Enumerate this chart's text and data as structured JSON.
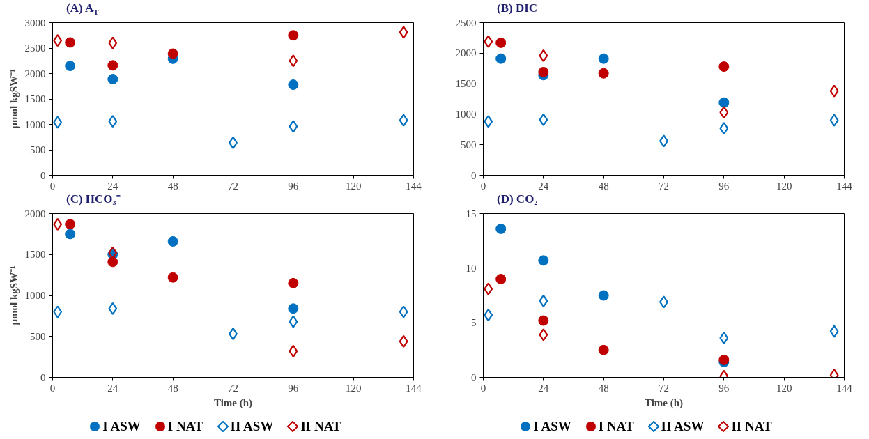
{
  "chart_data": [
    {
      "type": "scatter",
      "title": "(A) A$_{T}$",
      "ylabel": "µmol kgSW⁻¹",
      "xlim": [
        0,
        144
      ],
      "xticks": [
        0,
        24,
        48,
        72,
        96,
        120,
        144
      ],
      "ylim": [
        0,
        3000
      ],
      "yticks": [
        0,
        500,
        1000,
        1500,
        2000,
        2500,
        3000
      ],
      "grid": false,
      "series": [
        {
          "color": "#0070c0",
          "marker": "circle",
          "x": [
            7,
            24,
            48,
            96
          ],
          "values": [
            2150,
            1890,
            2290,
            1780
          ]
        },
        {
          "color": "#c00000",
          "marker": "circle",
          "x": [
            7,
            24,
            48,
            96
          ],
          "values": [
            2610,
            2160,
            2390,
            2750
          ]
        },
        {
          "color": "#0070c0",
          "marker": "diamond",
          "x": [
            2,
            24,
            72,
            96,
            140
          ],
          "values": [
            1040,
            1060,
            640,
            960,
            1080
          ]
        },
        {
          "color": "#c00000",
          "marker": "diamond",
          "x": [
            2,
            24,
            96,
            140
          ],
          "values": [
            2650,
            2600,
            2250,
            2810
          ]
        }
      ]
    },
    {
      "type": "scatter",
      "title": "(B) DIC",
      "xlim": [
        0,
        144
      ],
      "xticks": [
        0,
        24,
        48,
        72,
        96,
        120,
        144
      ],
      "ylim": [
        0,
        2500
      ],
      "yticks": [
        0,
        500,
        1000,
        1500,
        2000,
        2500
      ],
      "grid": false,
      "series": [
        {
          "color": "#0070c0",
          "marker": "circle",
          "x": [
            7,
            24,
            48,
            96
          ],
          "values": [
            1910,
            1640,
            1910,
            1190
          ]
        },
        {
          "color": "#c00000",
          "marker": "circle",
          "x": [
            7,
            24,
            48,
            96
          ],
          "values": [
            2170,
            1690,
            1670,
            1780
          ]
        },
        {
          "color": "#0070c0",
          "marker": "diamond",
          "x": [
            2,
            24,
            72,
            96,
            140
          ],
          "values": [
            880,
            910,
            560,
            770,
            900
          ]
        },
        {
          "color": "#c00000",
          "marker": "diamond",
          "x": [
            2,
            24,
            96,
            140
          ],
          "values": [
            2190,
            1960,
            1030,
            1380
          ]
        }
      ]
    },
    {
      "type": "scatter",
      "title": "(C) HCO₃⁻",
      "xlabel": "Time (h)",
      "ylabel": "µmol kgSW⁻¹",
      "xlim": [
        0,
        144
      ],
      "xticks": [
        0,
        24,
        48,
        72,
        96,
        120,
        144
      ],
      "ylim": [
        0,
        2000
      ],
      "yticks": [
        0,
        500,
        1000,
        1500,
        2000
      ],
      "grid": false,
      "legend": "bottom",
      "series": [
        {
          "name": "I ASW",
          "color": "#0070c0",
          "marker": "circle",
          "x": [
            7,
            24,
            48,
            96
          ],
          "values": [
            1750,
            1500,
            1660,
            840
          ]
        },
        {
          "name": "I NAT",
          "color": "#c00000",
          "marker": "circle",
          "x": [
            7,
            24,
            48,
            96
          ],
          "values": [
            1870,
            1410,
            1220,
            1150
          ]
        },
        {
          "name": "II ASW",
          "color": "#0070c0",
          "marker": "diamond",
          "x": [
            2,
            24,
            72,
            96,
            140
          ],
          "values": [
            800,
            840,
            530,
            680,
            800
          ]
        },
        {
          "name": "II NAT",
          "color": "#c00000",
          "marker": "diamond",
          "x": [
            2,
            24,
            96,
            140
          ],
          "values": [
            1870,
            1520,
            320,
            440
          ]
        }
      ]
    },
    {
      "type": "scatter",
      "title": "(D) CO₂",
      "xlabel": "Time (h)",
      "xlim": [
        0,
        144
      ],
      "xticks": [
        0,
        24,
        48,
        72,
        96,
        120,
        144
      ],
      "ylim": [
        0,
        15
      ],
      "yticks": [
        0,
        5,
        10,
        15
      ],
      "grid": false,
      "legend": "bottom",
      "series": [
        {
          "name": "I ASW",
          "color": "#0070c0",
          "marker": "circle",
          "x": [
            7,
            24,
            48,
            96
          ],
          "values": [
            13.6,
            10.7,
            7.5,
            1.4
          ]
        },
        {
          "name": "I NAT",
          "color": "#c00000",
          "marker": "circle",
          "x": [
            7,
            24,
            48,
            96
          ],
          "values": [
            9.0,
            5.2,
            2.5,
            1.6
          ]
        },
        {
          "name": "II ASW",
          "color": "#0070c0",
          "marker": "diamond",
          "x": [
            2,
            24,
            72,
            96,
            140
          ],
          "values": [
            5.7,
            7.0,
            6.9,
            3.6,
            4.2
          ]
        },
        {
          "name": "II NAT",
          "color": "#c00000",
          "marker": "diamond",
          "x": [
            2,
            24,
            96,
            140
          ],
          "values": [
            8.1,
            3.9,
            0.1,
            0.2
          ]
        }
      ]
    }
  ]
}
